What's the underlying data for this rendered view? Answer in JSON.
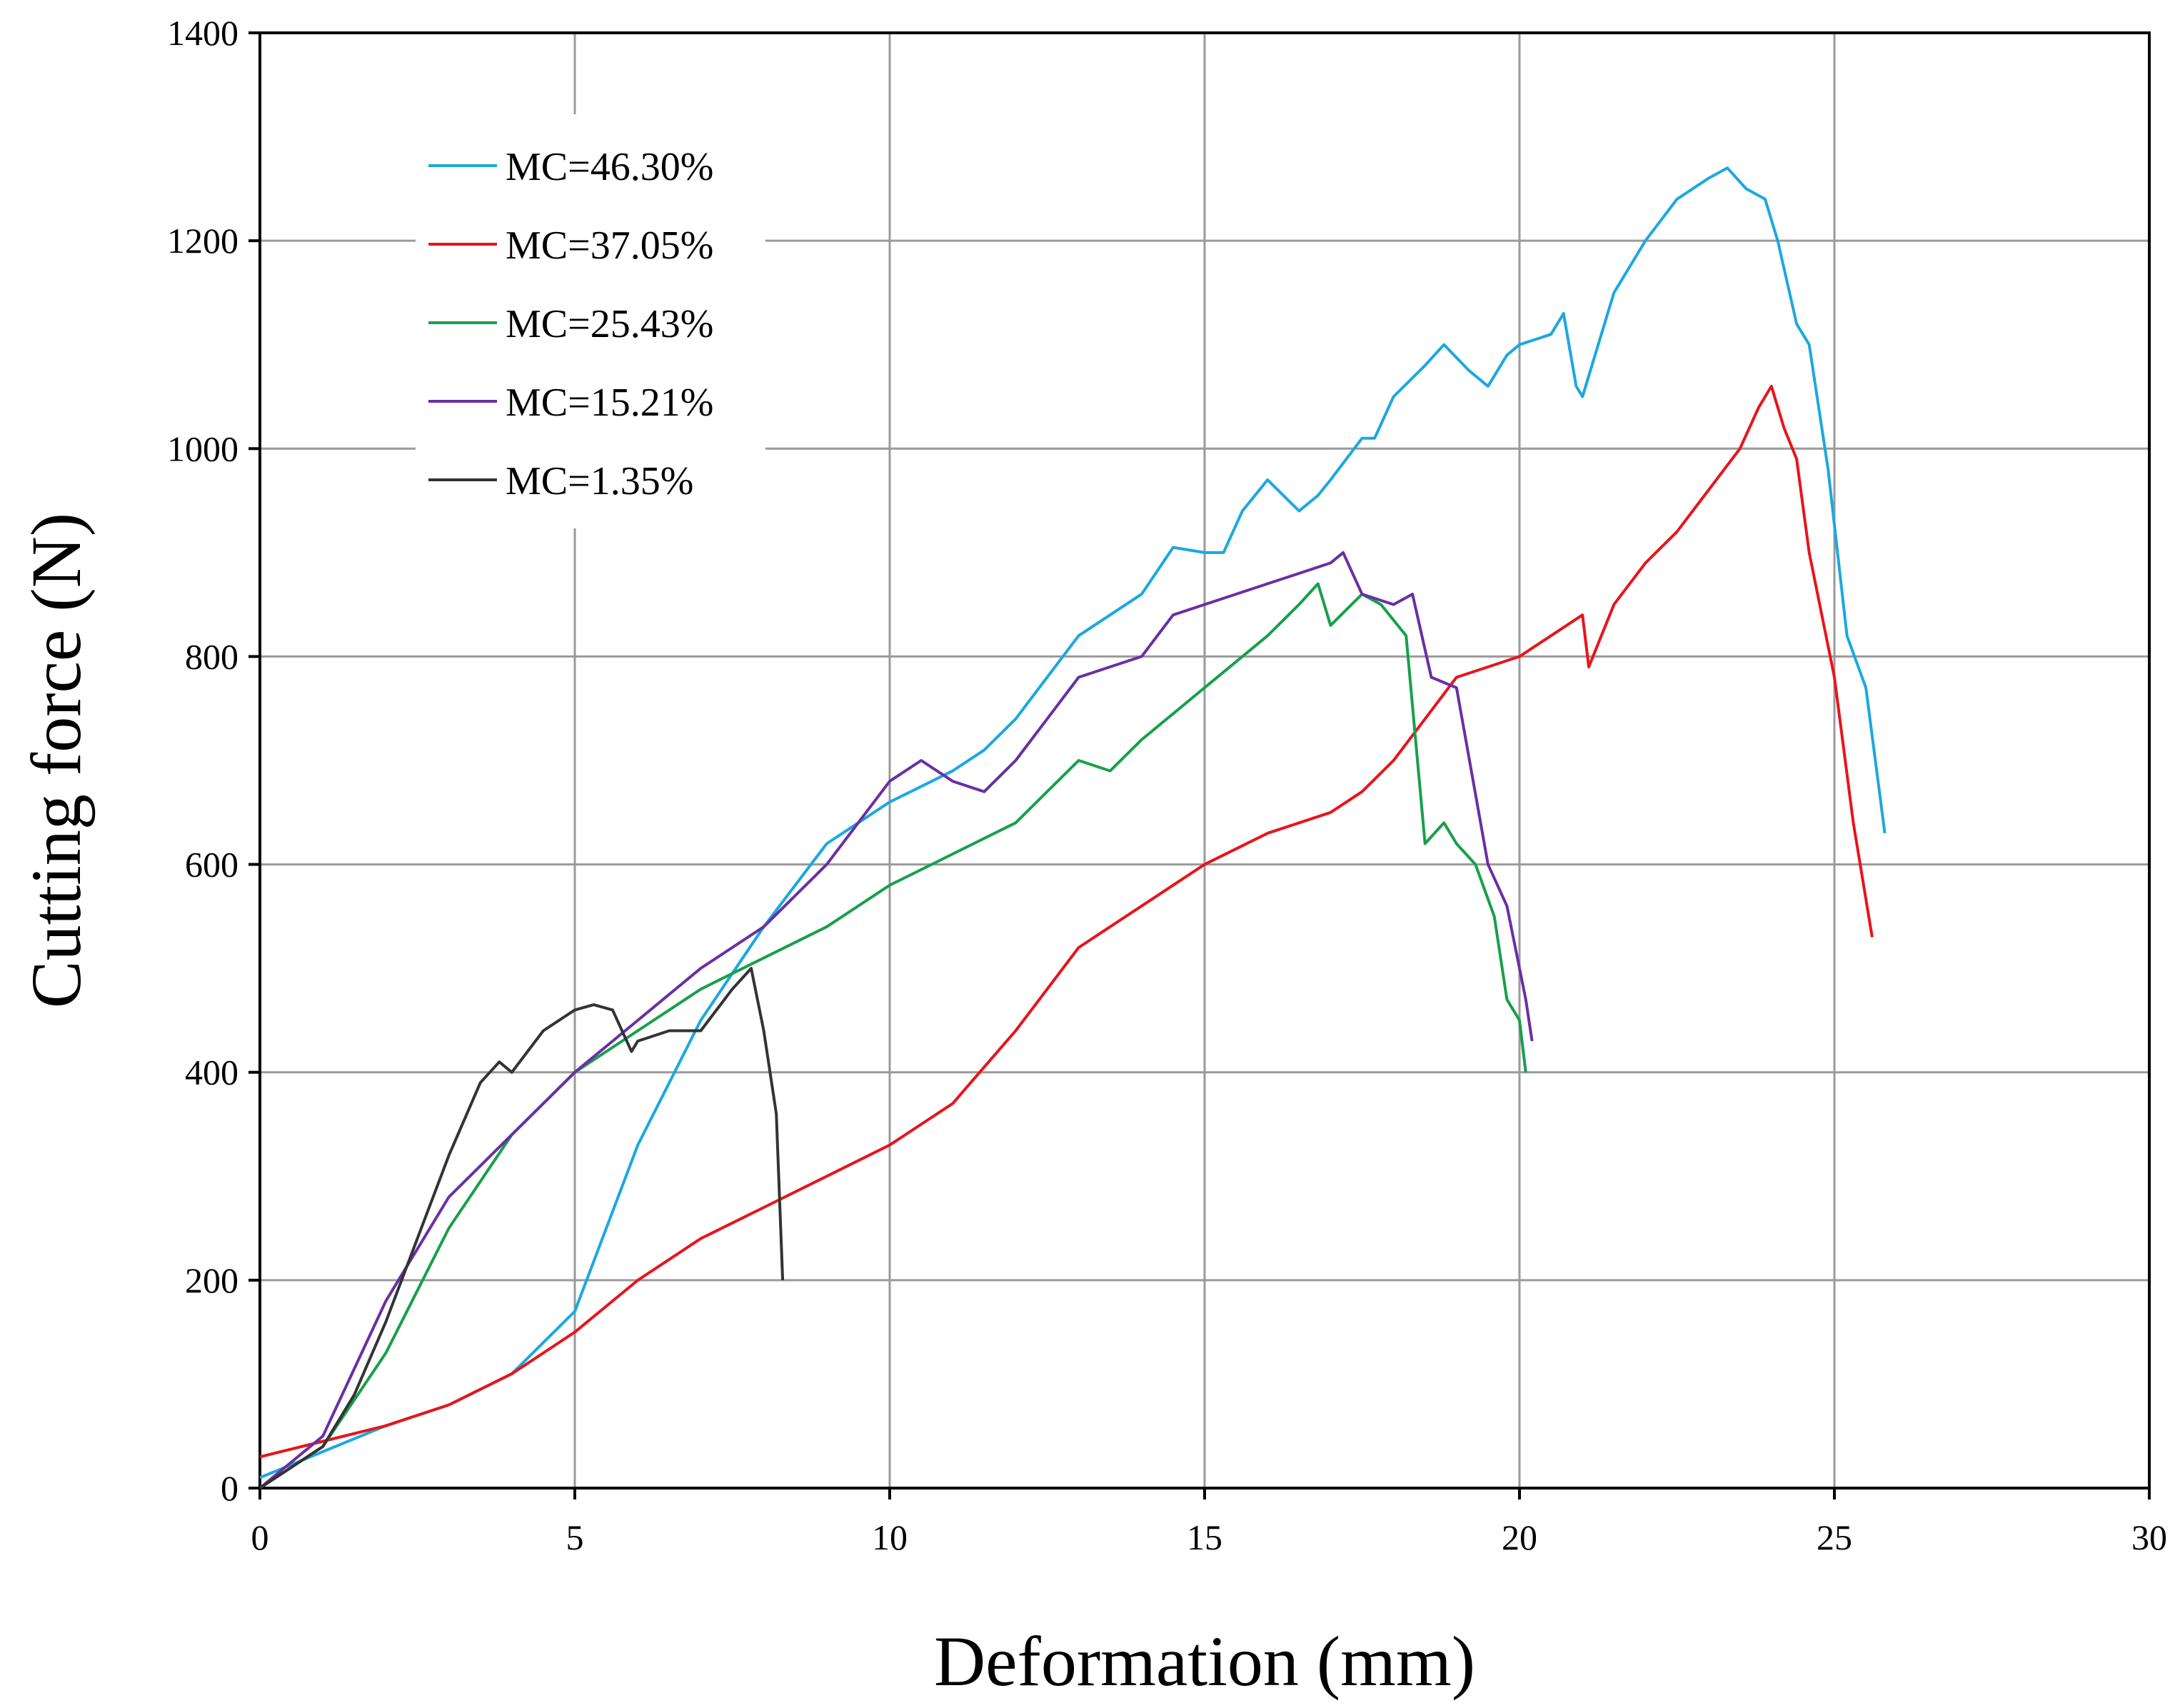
{
  "chart_data": {
    "type": "line",
    "title": "",
    "xlabel": "Deformation (mm)",
    "ylabel": "Cutting force (N)",
    "xlim": [
      0,
      30
    ],
    "ylim": [
      0,
      1400
    ],
    "xticks": [
      0,
      5,
      10,
      15,
      20,
      25,
      30
    ],
    "yticks": [
      0,
      200,
      400,
      600,
      800,
      1000,
      1200,
      1400
    ],
    "grid": true,
    "legend_position": "top-left",
    "series": [
      {
        "name": "MC=46.30%",
        "color": "#1BA8E0",
        "x": [
          0,
          1,
          2,
          3,
          4,
          4.5,
          5,
          5.5,
          6,
          7,
          8,
          9,
          10,
          11,
          11.5,
          12,
          12.5,
          13,
          14,
          14.5,
          15,
          15.3,
          15.6,
          16,
          16.5,
          16.8,
          17,
          17.5,
          17.7,
          18,
          18.5,
          18.8,
          19.2,
          19.5,
          19.8,
          20,
          20.5,
          20.7,
          20.9,
          21,
          21.5,
          22,
          22.5,
          23,
          23.3,
          23.6,
          23.9,
          24.1,
          24.4,
          24.6,
          24.9,
          25.2,
          25.5,
          25.8
        ],
        "y": [
          10,
          35,
          60,
          80,
          110,
          140,
          170,
          250,
          330,
          450,
          540,
          620,
          660,
          690,
          710,
          740,
          780,
          820,
          860,
          905,
          900,
          900,
          940,
          970,
          940,
          955,
          970,
          1010,
          1010,
          1050,
          1080,
          1100,
          1075,
          1060,
          1090,
          1100,
          1110,
          1130,
          1060,
          1050,
          1150,
          1200,
          1240,
          1260,
          1270,
          1250,
          1240,
          1200,
          1120,
          1100,
          980,
          820,
          770,
          630
        ]
      },
      {
        "name": "MC=37.05%",
        "color": "#E8141B",
        "x": [
          0,
          1,
          2,
          3,
          4,
          5,
          6,
          7,
          8,
          9,
          10,
          11,
          12,
          13,
          14,
          15,
          16,
          17,
          17.5,
          18,
          18.5,
          19,
          19.5,
          20,
          20.5,
          21,
          21.1,
          21.5,
          22,
          22.5,
          23,
          23.5,
          23.8,
          24,
          24.2,
          24.4,
          24.6,
          25,
          25.3,
          25.6
        ],
        "y": [
          30,
          45,
          60,
          80,
          110,
          150,
          200,
          240,
          270,
          300,
          330,
          370,
          440,
          520,
          560,
          600,
          630,
          650,
          670,
          700,
          740,
          780,
          790,
          800,
          820,
          840,
          790,
          850,
          890,
          920,
          960,
          1000,
          1040,
          1060,
          1020,
          990,
          900,
          780,
          640,
          530
        ]
      },
      {
        "name": "MC=25.43%",
        "color": "#17A04A",
        "x": [
          0,
          1,
          2,
          3,
          4,
          5,
          6,
          7,
          8,
          9,
          10,
          11,
          12,
          13,
          13.5,
          14,
          15,
          16,
          16.5,
          16.8,
          17,
          17.5,
          17.8,
          18.2,
          18.5,
          18.8,
          19,
          19.3,
          19.6,
          19.8,
          20,
          20.1
        ],
        "y": [
          0,
          40,
          130,
          250,
          340,
          400,
          440,
          480,
          510,
          540,
          580,
          610,
          640,
          700,
          690,
          720,
          770,
          820,
          850,
          870,
          830,
          860,
          850,
          820,
          620,
          640,
          620,
          600,
          550,
          470,
          450,
          400
        ]
      },
      {
        "name": "MC=15.21%",
        "color": "#6A2FA3",
        "x": [
          0,
          1,
          2,
          3,
          4,
          5,
          6,
          7,
          8,
          9,
          10,
          10.5,
          11,
          11.5,
          12,
          12.5,
          13,
          14,
          14.5,
          15,
          16,
          16.5,
          17,
          17.2,
          17.5,
          18,
          18.3,
          18.6,
          19,
          19.5,
          19.8,
          20.1,
          20.2
        ],
        "y": [
          0,
          50,
          180,
          280,
          340,
          400,
          450,
          500,
          540,
          600,
          680,
          700,
          680,
          670,
          700,
          740,
          780,
          800,
          840,
          850,
          870,
          880,
          890,
          900,
          860,
          850,
          860,
          780,
          770,
          600,
          560,
          470,
          430
        ]
      },
      {
        "name": "MC=1.35%",
        "color": "#333333",
        "x": [
          0,
          0.5,
          1,
          1.5,
          2,
          2.5,
          3,
          3.5,
          3.8,
          4,
          4.5,
          5,
          5.3,
          5.6,
          5.9,
          6,
          6.5,
          7,
          7.5,
          7.8,
          8,
          8.2,
          8.3
        ],
        "y": [
          0,
          20,
          40,
          90,
          160,
          240,
          320,
          390,
          410,
          400,
          440,
          460,
          465,
          460,
          420,
          430,
          440,
          440,
          480,
          500,
          440,
          360,
          200
        ]
      }
    ]
  }
}
